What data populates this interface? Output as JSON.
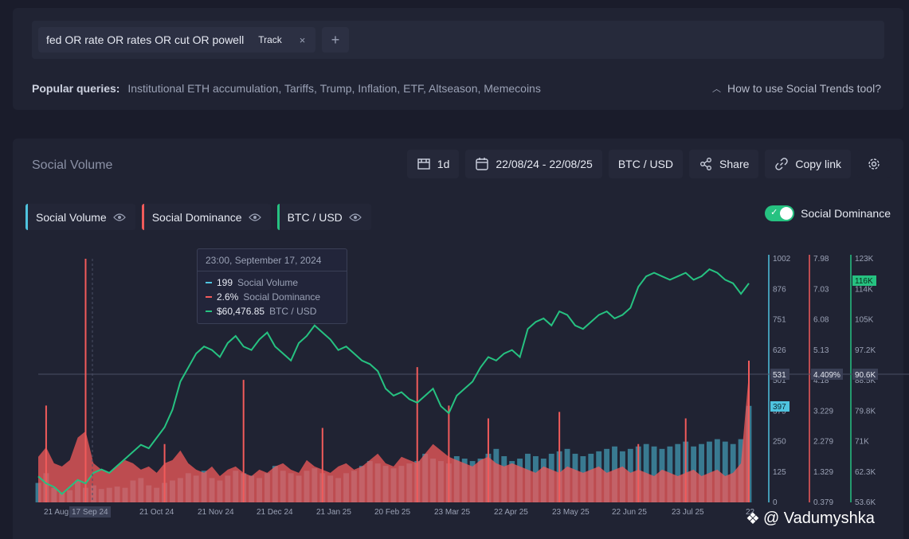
{
  "search": {
    "query": "fed OR rate OR rates OR cut OR powell",
    "track_label": "Track",
    "close": "×",
    "add": "+"
  },
  "popular": {
    "label": "Popular queries:",
    "items": "Institutional ETH accumulation, Tariffs, Trump, Inflation, ETF, Altseason, Memecoins"
  },
  "help_link": "How to use Social Trends tool?",
  "chart_panel": {
    "title": "Social Volume",
    "interval": "1d",
    "date_range": "22/08/24 - 22/08/25",
    "pair": "BTC / USD",
    "share": "Share",
    "copy_link": "Copy link"
  },
  "legend": [
    {
      "label": "Social Volume",
      "color": "#4fc3df"
    },
    {
      "label": "Social Dominance",
      "color": "#f15b5b"
    },
    {
      "label": "BTC / USD",
      "color": "#26c281"
    }
  ],
  "toggle_label": "Social Dominance",
  "tooltip": {
    "date": "23:00, September 17, 2024",
    "rows": [
      {
        "value": "199",
        "label": "Social Volume"
      },
      {
        "value": "2.6%",
        "label": "Social Dominance"
      },
      {
        "value": "$60,476.85",
        "label": "BTC / USD"
      }
    ]
  },
  "watermark": "@ Vadumyshka",
  "colors": {
    "volume": "#4fc3df",
    "dominance": "#f15b5b",
    "price": "#26c281",
    "background": "#202333"
  },
  "chart_data": {
    "type": "line",
    "x_ticks": [
      "21 Aug",
      "17 Sep 24",
      "21 Oct 24",
      "21 Nov 24",
      "21 Dec 24",
      "21 Jan 25",
      "20 Feb 25",
      "23 Mar 25",
      "22 Apr 25",
      "23 May 25",
      "22 Jun 25",
      "23 Jul 25",
      "22"
    ],
    "axes": {
      "volume": {
        "ticks": [
          "1002",
          "876",
          "751",
          "626",
          "501",
          "375",
          "250",
          "125",
          "0"
        ],
        "cursor": "531",
        "last": "397"
      },
      "dominance": {
        "ticks": [
          "7.98",
          "7.03",
          "6.08",
          "5.13",
          "4.18",
          "3.229",
          "2.279",
          "1.329",
          "0.379"
        ],
        "cursor": "4.409%"
      },
      "price": {
        "ticks": [
          "123K",
          "114K",
          "105K",
          "97.2K",
          "88.5K",
          "79.8K",
          "71K",
          "62.3K",
          "53.6K"
        ],
        "cursor": "90.6K",
        "last": "116K"
      }
    },
    "series": [
      {
        "name": "BTC / USD",
        "axis": "price",
        "values": [
          61,
          59,
          58,
          56,
          58,
          60,
          59,
          62,
          63,
          62,
          64,
          66,
          68,
          70,
          69,
          72,
          75,
          80,
          88,
          92,
          96,
          98,
          97,
          95,
          99,
          101,
          98,
          97,
          100,
          102,
          98,
          96,
          94,
          99,
          101,
          104,
          102,
          100,
          97,
          98,
          96,
          94,
          93,
          91,
          86,
          84,
          85,
          83,
          82,
          84,
          86,
          81,
          79,
          84,
          86,
          88,
          92,
          95,
          94,
          96,
          97,
          95,
          103,
          105,
          106,
          104,
          108,
          107,
          104,
          103,
          105,
          107,
          108,
          106,
          107,
          109,
          115,
          118,
          119,
          118,
          117,
          118,
          119,
          117,
          118,
          120,
          119,
          117,
          116,
          113,
          116
        ]
      },
      {
        "name": "Social Volume",
        "axis": "volume",
        "values": [
          80,
          120,
          60,
          40,
          50,
          90,
          60,
          70,
          55,
          60,
          65,
          60,
          90,
          100,
          70,
          60,
          80,
          90,
          100,
          120,
          110,
          130,
          100,
          90,
          110,
          130,
          120,
          110,
          100,
          120,
          150,
          130,
          120,
          110,
          130,
          140,
          120,
          110,
          100,
          120,
          130,
          150,
          170,
          160,
          150,
          140,
          150,
          160,
          170,
          200,
          180,
          170,
          160,
          190,
          180,
          170,
          180,
          200,
          220,
          190,
          170,
          180,
          200,
          190,
          180,
          200,
          210,
          220,
          200,
          190,
          200,
          210,
          220,
          230,
          210,
          220,
          230,
          240,
          230,
          220,
          230,
          240,
          250,
          230,
          240,
          250,
          260,
          250,
          240,
          260,
          397
        ]
      },
      {
        "name": "Social Dominance",
        "axis": "dominance",
        "values": [
          1.8,
          2.1,
          1.6,
          1.5,
          1.7,
          2.4,
          2.6,
          1.6,
          1.4,
          1.3,
          1.5,
          1.7,
          1.6,
          1.4,
          1.5,
          1.3,
          1.6,
          1.7,
          2.0,
          1.6,
          1.4,
          1.3,
          1.5,
          1.2,
          1.4,
          1.5,
          1.3,
          1.2,
          1.4,
          1.3,
          1.5,
          1.6,
          1.4,
          1.3,
          1.7,
          1.5,
          1.4,
          1.3,
          1.5,
          1.6,
          1.4,
          1.5,
          1.7,
          1.9,
          1.6,
          1.5,
          1.8,
          1.7,
          1.6,
          1.9,
          2.2,
          2.0,
          1.8,
          1.7,
          1.6,
          1.5,
          1.7,
          1.8,
          1.6,
          1.5,
          1.6,
          1.5,
          1.4,
          1.3,
          1.5,
          1.4,
          1.3,
          1.5,
          1.4,
          1.3,
          1.4,
          1.5,
          1.3,
          1.4,
          1.5,
          1.3,
          1.4,
          1.3,
          1.2,
          1.4,
          1.3,
          1.2,
          1.3,
          1.4,
          1.2,
          1.3,
          1.4,
          1.2,
          1.3,
          1.6,
          4.4
        ]
      }
    ],
    "spikes": {
      "dominance_peaks": [
        [
          1,
          3.4
        ],
        [
          6,
          7.98
        ],
        [
          16,
          2.2
        ],
        [
          26,
          4.2
        ],
        [
          36,
          2.7
        ],
        [
          48,
          4.6
        ],
        [
          52,
          3.4
        ],
        [
          57,
          3.0
        ],
        [
          66,
          3.2
        ],
        [
          76,
          2.2
        ],
        [
          82,
          3.0
        ],
        [
          90,
          4.8
        ]
      ]
    }
  }
}
